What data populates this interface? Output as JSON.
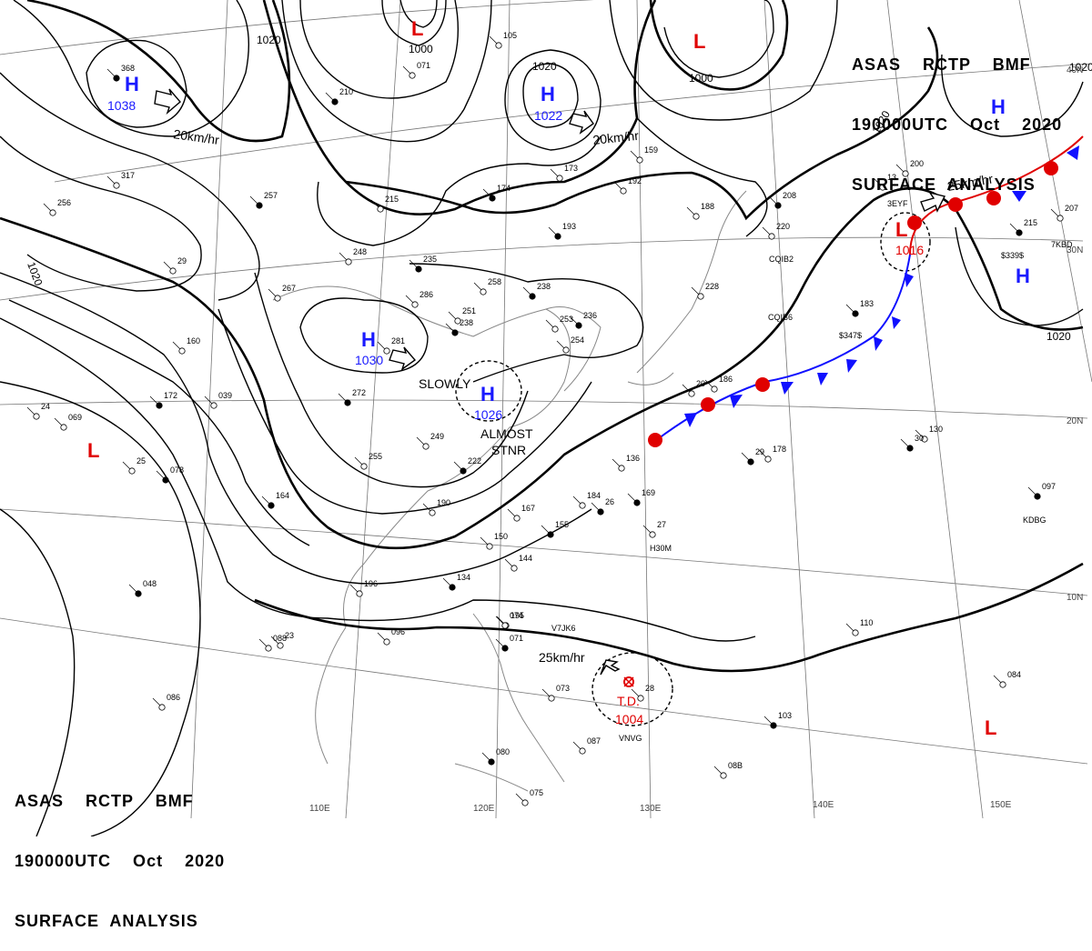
{
  "header_top": {
    "line1": "ASAS    RCTP    BMF",
    "line2": "190000UTC    Oct    2020",
    "line3": "SURFACE  ANALYSIS"
  },
  "header_bottom": {
    "line1": "ASAS    RCTP    BMF",
    "line2": "190000UTC    Oct    2020",
    "line3": "SURFACE  ANALYSIS"
  },
  "colors": {
    "high": "#1a1aff",
    "low": "#e00000",
    "cold_front": "#1010ff",
    "warm_front": "#e00000",
    "isobar": "#000000",
    "coast": "#888888",
    "grid": "#666666"
  },
  "pressure_centers": [
    {
      "type": "high",
      "symbol": "H",
      "value": "1038"
    },
    {
      "type": "high",
      "symbol": "H",
      "value": "1022"
    },
    {
      "type": "high",
      "symbol": "H",
      "value": "1030"
    },
    {
      "type": "high",
      "symbol": "H",
      "value": "1026"
    },
    {
      "type": "high",
      "symbol": "H",
      "value": ""
    },
    {
      "type": "high",
      "symbol": "H",
      "value": ""
    },
    {
      "type": "low",
      "symbol": "L",
      "value": ""
    },
    {
      "type": "low",
      "symbol": "L",
      "value": ""
    },
    {
      "type": "low",
      "symbol": "L",
      "value": "1016"
    },
    {
      "type": "low",
      "symbol": "L",
      "value": ""
    },
    {
      "type": "low",
      "symbol": "L",
      "value": ""
    }
  ],
  "tropical_depression": {
    "label": "T.D.",
    "pressure": "1004",
    "movement": "25km/hr"
  },
  "movement_labels": [
    "20km/hr",
    "20km/hr",
    "25km/hr",
    "SLOWLY"
  ],
  "stationary_note": [
    "ALMOST",
    "STNR"
  ],
  "isobar_labels": [
    "1020",
    "1020",
    "1000",
    "1020",
    "1000",
    "1020",
    "1020",
    "1020"
  ],
  "longitude_labels": [
    "110E",
    "120E",
    "130E",
    "140E",
    "150E"
  ],
  "latitude_labels": [
    "40N",
    "30N",
    "20N",
    "10N"
  ],
  "ship_ids": [
    "3EYF",
    "7KBD",
    "CQIB2",
    "CQIB6",
    "$347$",
    "$339$",
    "KDBG",
    "H30M",
    "V7JK6",
    "VNVG"
  ],
  "station_values": [
    "368",
    "317",
    "256",
    "257",
    "215",
    "248",
    "235",
    "267",
    "29",
    "210",
    "071",
    "105",
    "174",
    "173",
    "192",
    "193",
    "159",
    "188",
    "208",
    "220",
    "200",
    "215",
    "207",
    "228",
    "236",
    "258",
    "251",
    "238",
    "254",
    "253",
    "272",
    "255",
    "249",
    "222",
    "190",
    "167",
    "155",
    "150",
    "144",
    "134",
    "196",
    "195",
    "164",
    "184",
    "136",
    "169",
    "178",
    "130",
    "097",
    "096",
    "074",
    "071",
    "073",
    "087",
    "080",
    "075",
    "08B",
    "103",
    "110",
    "084",
    "048",
    "088",
    "086",
    "078",
    "069",
    "039",
    "172",
    "160",
    "186",
    "183",
    "281",
    "286",
    "238",
    "24",
    "20",
    "29",
    "28",
    "27",
    "26",
    "25",
    "23",
    "30",
    "13"
  ]
}
